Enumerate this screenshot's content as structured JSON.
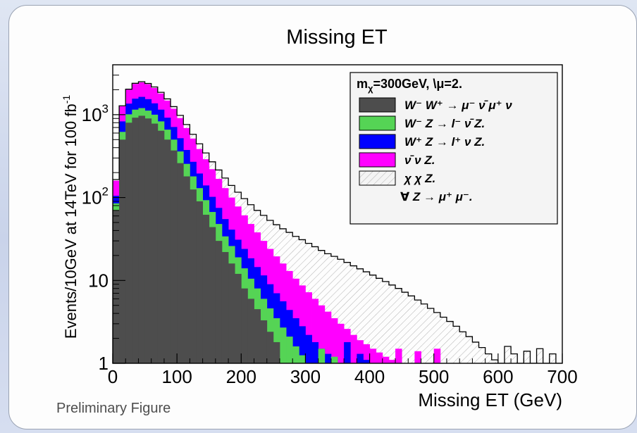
{
  "chart_data": {
    "type": "bar",
    "stacked": true,
    "title": "Missing ET",
    "xlabel": "Missing ET (GeV)",
    "ylabel": "Events/10GeV at 14TeV for 100 fb",
    "ylabel_superscript": "-1",
    "xlim": [
      0,
      700
    ],
    "ylim": [
      1,
      4000
    ],
    "log_y": true,
    "bin_width": 10,
    "x_ticks": [
      "0",
      "100",
      "200",
      "300",
      "400",
      "500",
      "600",
      "700"
    ],
    "y_ticks": [
      {
        "value": 1,
        "label": "1",
        "sup": ""
      },
      {
        "value": 10,
        "label": "10",
        "sup": ""
      },
      {
        "value": 100,
        "label": "10",
        "sup": "2"
      },
      {
        "value": 1000,
        "label": "10",
        "sup": "3"
      }
    ],
    "legend": {
      "position": "top-right",
      "header": "m",
      "header_sub": "χ",
      "header_rest": "=300GeV, \\μ=2.",
      "entries": [
        {
          "label": "W⁻ W⁺ → μ⁻ ν̄ μ⁺ ν",
          "series": "ww"
        },
        {
          "label": "W⁻ Z → l⁻ ν̄ Z.",
          "series": "wmz"
        },
        {
          "label": "W⁺ Z → l⁺ ν Z.",
          "series": "wpz"
        },
        {
          "label": "ν̄ ν Z.",
          "series": "nnz"
        },
        {
          "label": "χ χ Z.",
          "series": "signal"
        },
        {
          "label": "∀ Z → μ⁺ μ⁻.",
          "series": ""
        }
      ]
    },
    "series": [
      {
        "name": "ww",
        "color": "#4d4d4d",
        "values": [
          70,
          500,
          800,
          920,
          970,
          900,
          780,
          640,
          500,
          370,
          260,
          180,
          125,
          90,
          62,
          44,
          30,
          22,
          16,
          12,
          8,
          6,
          4.5,
          3.3,
          2.4,
          1.8,
          1
        ]
      },
      {
        "name": "wmz",
        "color": "#55d455",
        "values": [
          85,
          620,
          1010,
          1150,
          1200,
          1120,
          1000,
          830,
          660,
          500,
          360,
          255,
          180,
          130,
          93,
          67,
          48,
          34,
          26,
          19,
          14,
          10.5,
          8,
          6,
          4.6,
          3.5,
          2.7,
          2.1,
          1.6,
          1.25,
          1,
          0,
          1.5,
          0,
          1.2,
          0,
          1
        ]
      },
      {
        "name": "wpz",
        "color": "#0000ff",
        "values": [
          105,
          830,
          1360,
          1560,
          1640,
          1540,
          1370,
          1150,
          920,
          710,
          520,
          375,
          270,
          195,
          140,
          102,
          75,
          55,
          41,
          31,
          24,
          18.5,
          14.5,
          11.5,
          9,
          7,
          5.6,
          4.4,
          3.5,
          2.8,
          2.2,
          1.8,
          1.5,
          1.3,
          1.15,
          0,
          1.8,
          0,
          1.3,
          1.1,
          1
        ]
      },
      {
        "name": "nnz",
        "color": "#ff00ff",
        "values": [
          160,
          1260,
          2000,
          2350,
          2450,
          2330,
          2100,
          1800,
          1480,
          1180,
          910,
          690,
          515,
          385,
          290,
          220,
          168,
          130,
          100,
          78,
          61,
          48,
          38,
          30,
          24,
          19.5,
          16,
          13,
          10.5,
          8.7,
          7.2,
          6,
          5,
          4.2,
          3.5,
          3,
          2.6,
          2.2,
          1.9,
          1.7,
          1.5,
          1.35,
          1.2,
          1.1,
          1.5,
          0,
          1,
          1.4,
          0,
          0,
          1.5,
          0,
          1
        ]
      },
      {
        "name": "signal",
        "color": "#ffffff",
        "values": [
          165,
          1280,
          2030,
          2390,
          2500,
          2380,
          2160,
          1860,
          1550,
          1250,
          980,
          760,
          580,
          445,
          345,
          270,
          215,
          172,
          140,
          116,
          97,
          82,
          70,
          61,
          53,
          47,
          42,
          38,
          34,
          31,
          28,
          25.5,
          23,
          21,
          19.5,
          18,
          16.5,
          15,
          13.8,
          12.7,
          11.6,
          10.6,
          9.7,
          8.8,
          8,
          7.2,
          6.5,
          5.8,
          5.2,
          4.6,
          4.1,
          3.6,
          3.2,
          2.8,
          2.4,
          2.1,
          1.8,
          1.55,
          1.3,
          1.1,
          1,
          1.6,
          1.3,
          1,
          1.4,
          1,
          1.5,
          1,
          1.3,
          1
        ]
      }
    ]
  },
  "footer": {
    "note": "Preliminary Figure"
  }
}
